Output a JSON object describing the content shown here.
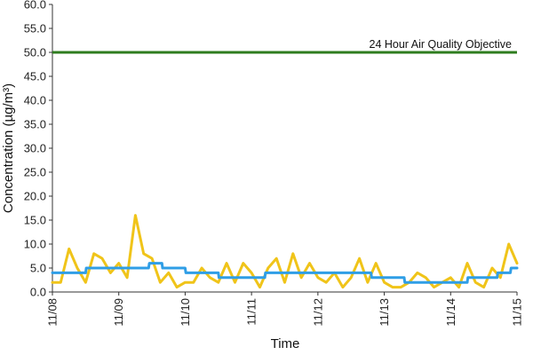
{
  "chart_data": {
    "type": "line",
    "title": "",
    "xlabel": "Time",
    "ylabel": "Concentration (µg/m³)",
    "ylim": [
      0,
      60
    ],
    "y_ticks": [
      "0.0",
      "5.0",
      "10.0",
      "15.0",
      "20.0",
      "25.0",
      "30.0",
      "35.0",
      "40.0",
      "45.0",
      "50.0",
      "55.0",
      "60.0"
    ],
    "x_ticks": [
      "11/08",
      "11/09",
      "11/10",
      "11/11",
      "11/12",
      "11/13",
      "11/14",
      "11/15"
    ],
    "grid": false,
    "legend": "none",
    "reference_line": {
      "label": "24 Hour Air Quality Objective",
      "y": 50,
      "color": "#2e7d1e"
    },
    "series": [
      {
        "name": "",
        "color": "#f0c419",
        "x_days": [
          0,
          0.125,
          0.25,
          0.375,
          0.5,
          0.625,
          0.75,
          0.875,
          1,
          1.125,
          1.25,
          1.375,
          1.5,
          1.625,
          1.75,
          1.875,
          2,
          2.125,
          2.25,
          2.375,
          2.5,
          2.625,
          2.75,
          2.875,
          3,
          3.125,
          3.25,
          3.375,
          3.5,
          3.625,
          3.75,
          3.875,
          4,
          4.125,
          4.25,
          4.375,
          4.5,
          4.625,
          4.75,
          4.875,
          5,
          5.125,
          5.25,
          5.375,
          5.5,
          5.625,
          5.75,
          5.875,
          6,
          6.125,
          6.25,
          6.375,
          6.5,
          6.625,
          6.75,
          6.875,
          7
        ],
        "values": [
          2,
          2,
          9,
          5,
          2,
          8,
          7,
          4,
          6,
          3,
          16,
          8,
          7,
          2,
          4,
          1,
          2,
          2,
          5,
          3,
          2,
          6,
          2,
          6,
          4,
          1,
          5,
          7,
          2,
          8,
          3,
          6,
          3,
          2,
          4,
          1,
          3,
          7,
          2,
          6,
          2,
          1,
          1,
          2,
          4,
          3,
          1,
          2,
          3,
          1,
          6,
          2,
          1,
          5,
          3,
          10,
          6
        ]
      },
      {
        "name": "",
        "color": "#2f9ee6",
        "x_days": [
          0,
          0.5,
          0.51,
          1.45,
          1.46,
          1.65,
          1.66,
          2,
          2.01,
          2.5,
          2.51,
          3.2,
          3.21,
          4.2,
          4.21,
          4.8,
          4.81,
          5.3,
          5.31,
          6.25,
          6.26,
          6.7,
          6.71,
          6.9,
          6.91,
          7
        ],
        "values": [
          4,
          4,
          5,
          5,
          6,
          6,
          5,
          5,
          4,
          4,
          3,
          3,
          4,
          4,
          4,
          4,
          3,
          3,
          2,
          2,
          3,
          3,
          4,
          4,
          5,
          5
        ]
      }
    ]
  }
}
